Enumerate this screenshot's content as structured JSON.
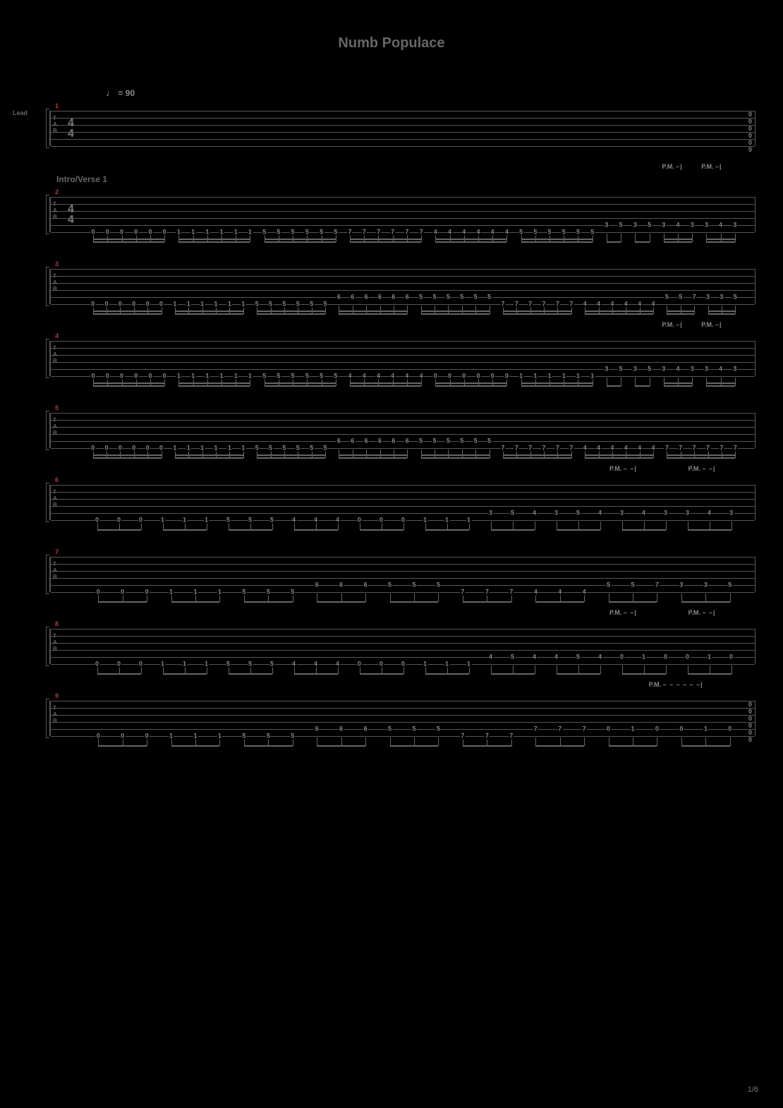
{
  "title": "Numb Populace",
  "tempo_label": "= 90",
  "track_label": "Lead",
  "section_label": "Intro/Verse 1",
  "page_number": "1/6",
  "tab_letters": "T\nA\nB",
  "pm_label": "P.M.",
  "time_sig_top": "4",
  "time_sig_bot": "4",
  "staff_colors": {
    "line": "#555",
    "text": "#888",
    "barnum": "#c0392b",
    "bg": "#000"
  },
  "bars": [
    {
      "num": "1",
      "timesig": true,
      "show_tempo": true,
      "notes": [],
      "end_chord": [
        "0",
        "0",
        "0",
        "0",
        "0",
        "0"
      ],
      "beams": []
    },
    {
      "num": "2",
      "timesig": true,
      "pm": [
        {
          "x": 88,
          "dash": "–|"
        },
        {
          "x": 94,
          "dash": "–|"
        }
      ],
      "notes_line": 5,
      "pattern": [
        {
          "g": [
            0,
            0,
            0,
            0,
            0,
            0
          ]
        },
        {
          "g": [
            1,
            1,
            1,
            1,
            1,
            1
          ]
        },
        {
          "g": [
            5,
            5,
            5,
            5,
            5,
            5
          ]
        },
        {
          "g": [
            7,
            7,
            7,
            7,
            7,
            7
          ]
        },
        {
          "g": [
            4,
            4,
            4,
            4,
            4,
            4
          ]
        },
        {
          "g": [
            5,
            5,
            5,
            5,
            5,
            5
          ]
        }
      ],
      "tail": [
        [
          3,
          5
        ],
        [
          3,
          5
        ],
        [
          3,
          4,
          3
        ],
        [
          3,
          4,
          3
        ]
      ],
      "tail_line": 4
    },
    {
      "num": "3",
      "notes_line": 5,
      "pattern": [
        {
          "g": [
            0,
            0,
            0,
            0,
            0,
            0
          ]
        },
        {
          "g": [
            1,
            1,
            1,
            1,
            1,
            1
          ]
        },
        {
          "g": [
            5,
            5,
            5,
            5,
            5,
            5
          ]
        },
        {
          "g": [
            6,
            6,
            6,
            6,
            6,
            6
          ],
          "line": 4
        },
        {
          "g": [
            5,
            5,
            5,
            5,
            5,
            5
          ],
          "line": 4
        },
        {
          "g": [
            7,
            7,
            7,
            7,
            7,
            7
          ]
        },
        {
          "g": [
            4,
            4,
            4,
            4,
            4,
            4
          ]
        }
      ],
      "tail": [
        [
          5,
          5,
          7
        ],
        [
          3,
          3,
          5
        ]
      ],
      "tail_line": 4
    },
    {
      "num": "4",
      "pm": [
        {
          "x": 88,
          "dash": "–|"
        },
        {
          "x": 94,
          "dash": "–|"
        }
      ],
      "notes_line": 5,
      "pattern": [
        {
          "g": [
            0,
            0,
            0,
            0,
            0,
            0
          ]
        },
        {
          "g": [
            1,
            1,
            1,
            1,
            1,
            1
          ]
        },
        {
          "g": [
            5,
            5,
            5,
            5,
            5,
            5
          ]
        },
        {
          "g": [
            4,
            4,
            4,
            4,
            4,
            4
          ]
        },
        {
          "g": [
            0,
            0,
            0,
            0,
            0,
            0
          ]
        },
        {
          "g": [
            1,
            1,
            1,
            1,
            1,
            1
          ]
        }
      ],
      "tail": [
        [
          3,
          5
        ],
        [
          3,
          5
        ],
        [
          3,
          4,
          3
        ],
        [
          3,
          4,
          3
        ]
      ],
      "tail_line": 4
    },
    {
      "num": "5",
      "notes_line": 5,
      "pattern": [
        {
          "g": [
            0,
            0,
            0,
            0,
            0,
            0
          ]
        },
        {
          "g": [
            1,
            1,
            1,
            1,
            1,
            1
          ]
        },
        {
          "g": [
            5,
            5,
            5,
            5,
            5,
            5
          ]
        },
        {
          "g": [
            6,
            6,
            6,
            6,
            6,
            6
          ],
          "line": 4
        },
        {
          "g": [
            5,
            5,
            5,
            5,
            5,
            5
          ],
          "line": 4
        },
        {
          "g": [
            7,
            7,
            7,
            7,
            7,
            7
          ]
        },
        {
          "g": [
            4,
            4,
            4,
            4,
            4,
            4
          ]
        },
        {
          "g": [
            7,
            7,
            7,
            7,
            7,
            7
          ]
        }
      ]
    },
    {
      "num": "6",
      "pm": [
        {
          "x": 80,
          "dash": "– –|"
        },
        {
          "x": 92,
          "dash": "– –|"
        }
      ],
      "notes_line": 5,
      "pattern_triplet": [
        {
          "g": [
            0,
            0,
            0
          ]
        },
        {
          "g": [
            1,
            1,
            1
          ]
        },
        {
          "g": [
            5,
            5,
            5
          ]
        },
        {
          "g": [
            4,
            4,
            4
          ]
        },
        {
          "g": [
            0,
            0,
            0
          ]
        },
        {
          "g": [
            1,
            1,
            1
          ]
        }
      ],
      "tail": [
        [
          3,
          5,
          4
        ],
        [
          3,
          5,
          4
        ],
        [
          3,
          4,
          3
        ],
        [
          3,
          4,
          3
        ]
      ],
      "tail_line": 4
    },
    {
      "num": "7",
      "notes_line": 5,
      "pattern_triplet": [
        {
          "g": [
            0,
            0,
            0
          ]
        },
        {
          "g": [
            1,
            1,
            1
          ]
        },
        {
          "g": [
            5,
            5,
            5
          ]
        },
        {
          "g": [
            6,
            6,
            6
          ],
          "line": 4
        },
        {
          "g": [
            5,
            5,
            5
          ],
          "line": 4
        },
        {
          "g": [
            7,
            7,
            7
          ]
        },
        {
          "g": [
            4,
            4,
            4
          ]
        }
      ],
      "tail": [
        [
          5,
          5,
          7
        ],
        [
          3,
          3,
          5
        ]
      ],
      "tail_line": 4
    },
    {
      "num": "8",
      "pm": [
        {
          "x": 80,
          "dash": "– –|"
        },
        {
          "x": 92,
          "dash": "– –|"
        }
      ],
      "notes_line": 5,
      "pattern_triplet": [
        {
          "g": [
            0,
            0,
            0
          ]
        },
        {
          "g": [
            1,
            1,
            1
          ]
        },
        {
          "g": [
            5,
            5,
            5
          ]
        },
        {
          "g": [
            4,
            4,
            4
          ]
        },
        {
          "g": [
            0,
            0,
            0
          ]
        },
        {
          "g": [
            1,
            1,
            1
          ]
        }
      ],
      "tail": [
        [
          4,
          5,
          4
        ],
        [
          4,
          5,
          4
        ],
        [
          0,
          1,
          0
        ],
        [
          0,
          1,
          0
        ]
      ],
      "tail_line": 4
    },
    {
      "num": "9",
      "pm": [
        {
          "x": 86,
          "dash": "– – – – – –|"
        }
      ],
      "notes_line": 5,
      "pattern_triplet": [
        {
          "g": [
            0,
            0,
            0
          ]
        },
        {
          "g": [
            1,
            1,
            1
          ]
        },
        {
          "g": [
            5,
            5,
            5
          ]
        },
        {
          "g": [
            6,
            6,
            6
          ],
          "line": 4
        },
        {
          "g": [
            5,
            5,
            5
          ],
          "line": 4
        },
        {
          "g": [
            7,
            7,
            7
          ]
        }
      ],
      "tail": [
        [
          7,
          7,
          7
        ],
        [
          0,
          1,
          0
        ],
        [
          0,
          1,
          0
        ]
      ],
      "tail_line": 4,
      "tail_last_upper": true,
      "end_chord": [
        "0",
        "0",
        "0",
        "0",
        "0",
        "0"
      ]
    }
  ]
}
